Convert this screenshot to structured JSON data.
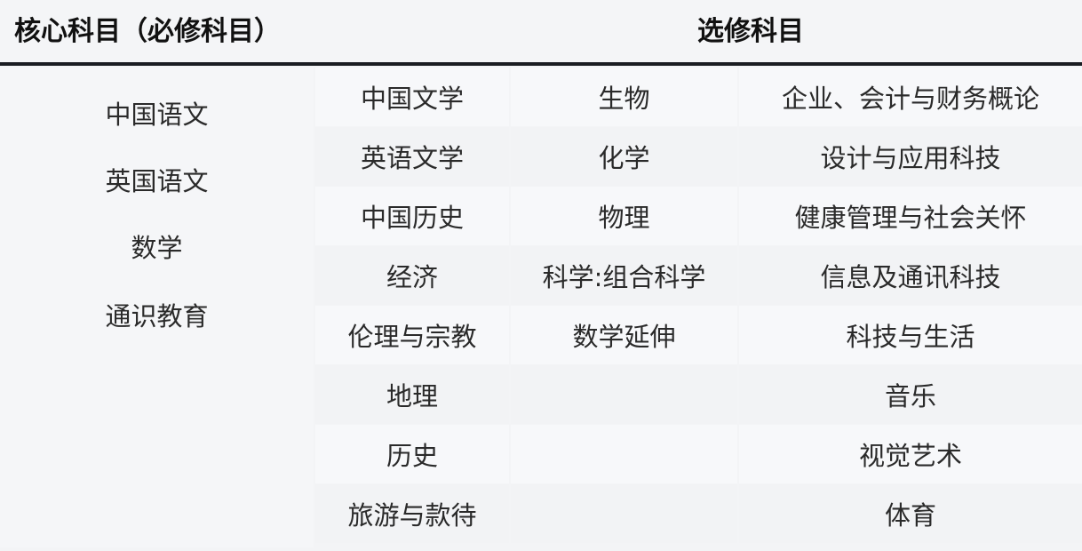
{
  "header": {
    "core_title": "核心科目（必修科目）",
    "elective_title": "选修科目"
  },
  "core": [
    "中国语文",
    "英国语文",
    "数学",
    "通识教育"
  ],
  "electives": {
    "col1": [
      "中国文学",
      "英语文学",
      "中国历史",
      "经济",
      "伦理与宗教",
      "地理",
      "历史",
      "旅游与款待"
    ],
    "col2": [
      "生物",
      "化学",
      "物理",
      "科学:组合科学",
      "数学延伸",
      "",
      "",
      ""
    ],
    "col3": [
      "企业、会计与财务概论",
      "设计与应用科技",
      "健康管理与社会关怀",
      "信息及通讯科技",
      "科技与生活",
      "音乐",
      "视觉艺术",
      "体育"
    ]
  }
}
